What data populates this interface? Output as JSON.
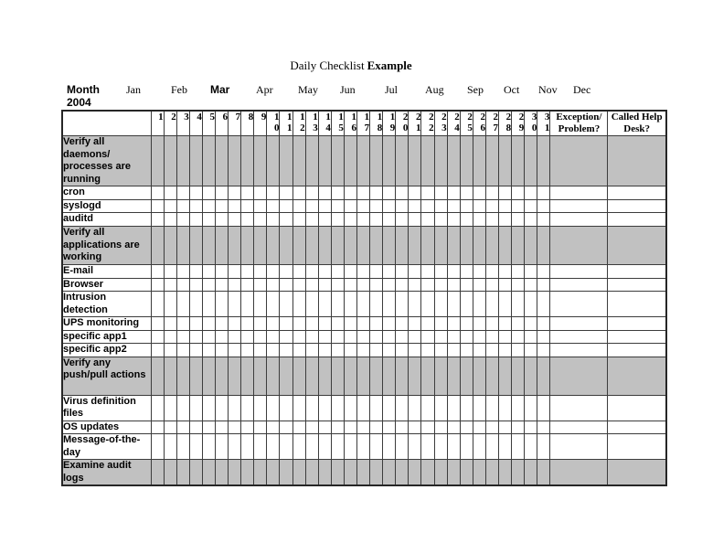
{
  "title": {
    "text_regular": "Daily Checklist",
    "text_bold": "Example"
  },
  "month_header": {
    "label_line1": "Month",
    "label_line2": "2004",
    "months": [
      {
        "label": "Jan",
        "current": false
      },
      {
        "label": "Feb",
        "current": false
      },
      {
        "label": "Mar",
        "current": true
      },
      {
        "label": "Apr",
        "current": false
      },
      {
        "label": "May",
        "current": false
      },
      {
        "label": "Jun",
        "current": false
      },
      {
        "label": "Jul",
        "current": false
      },
      {
        "label": "Aug",
        "current": false
      },
      {
        "label": "Sep",
        "current": false
      },
      {
        "label": "Oct",
        "current": false
      },
      {
        "label": "Nov",
        "current": false
      },
      {
        "label": "Dec",
        "current": false
      }
    ]
  },
  "table": {
    "day_numbers": [
      1,
      2,
      3,
      4,
      5,
      6,
      7,
      8,
      9,
      10,
      11,
      12,
      13,
      14,
      15,
      16,
      17,
      18,
      19,
      20,
      21,
      22,
      23,
      24,
      25,
      26,
      27,
      28,
      29,
      30,
      31
    ],
    "extra_headers": [
      {
        "line1": "Exception/",
        "line2": "Problem?"
      },
      {
        "line1": "Called Help",
        "line2": "Desk?"
      }
    ],
    "rows": [
      {
        "label": "Verify all daemons/ processes are running",
        "shaded": true
      },
      {
        "label": "cron",
        "shaded": false
      },
      {
        "label": "syslogd",
        "shaded": false
      },
      {
        "label": "auditd",
        "shaded": false
      },
      {
        "label": "Verify all applications are working",
        "shaded": true
      },
      {
        "label": "E-mail",
        "shaded": false
      },
      {
        "label": "Browser",
        "shaded": false
      },
      {
        "label": "Intrusion detection",
        "shaded": false
      },
      {
        "label": "UPS monitoring",
        "shaded": false
      },
      {
        "label": "specific app1",
        "shaded": false
      },
      {
        "label": "specific app2",
        "shaded": false
      },
      {
        "label": "Verify any push/pull actions",
        "shaded": true
      },
      {
        "label": "Virus definition files",
        "shaded": false
      },
      {
        "label": "OS updates",
        "shaded": false
      },
      {
        "label": "Message-of-the-day",
        "shaded": false
      },
      {
        "label": "Examine audit logs",
        "shaded": true
      }
    ],
    "colors": {
      "shaded_fill": "#c1c1c1",
      "grid_line": "#3c3c3c"
    }
  }
}
